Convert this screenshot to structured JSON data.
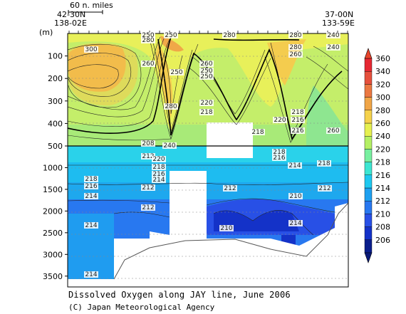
{
  "chart_data": {
    "type": "heatmap",
    "title": "Dissolved Oxygen along JAY line, June 2006",
    "copyright": "(C) Japan Meteorological Agency",
    "ylabel_unit": "(m)",
    "scale_bar_label": "60 n. miles",
    "left_station": {
      "lat": "42-30N",
      "lon": "138-02E"
    },
    "right_station": {
      "lat": "37-00N",
      "lon": "133-59E"
    },
    "y_ticks_upper": [
      100,
      200,
      300,
      400,
      500
    ],
    "y_ticks_lower": [
      1000,
      1500,
      2000,
      2500,
      3000,
      3500
    ],
    "y_split_depth": 500,
    "colorbar_levels": [
      206,
      208,
      210,
      212,
      214,
      216,
      218,
      220,
      240,
      260,
      280,
      300,
      320,
      340,
      360
    ],
    "colorbar_colors": [
      "#0a1e8c",
      "#1432c8",
      "#2850e6",
      "#2878f0",
      "#1ea0f0",
      "#1ec8f0",
      "#3ce6d2",
      "#78f0a0",
      "#b4f064",
      "#e6f050",
      "#f5d24b",
      "#f0a546",
      "#eb7841",
      "#e6503c",
      "#e62832"
    ],
    "contour_labels": [
      "250",
      "280",
      "250",
      "280",
      "280",
      "240",
      "300",
      "260",
      "260",
      "250",
      "280",
      "250",
      "240",
      "260",
      "280",
      "220",
      "218",
      "218",
      "220",
      "216",
      "260",
      "250",
      "218",
      "216",
      "240",
      "208",
      "212",
      "220",
      "218",
      "216",
      "214",
      "218",
      "216",
      "218",
      "216",
      "214",
      "218",
      "214",
      "212",
      "212",
      "212",
      "210",
      "212",
      "214",
      "214",
      "210",
      "214"
    ]
  }
}
